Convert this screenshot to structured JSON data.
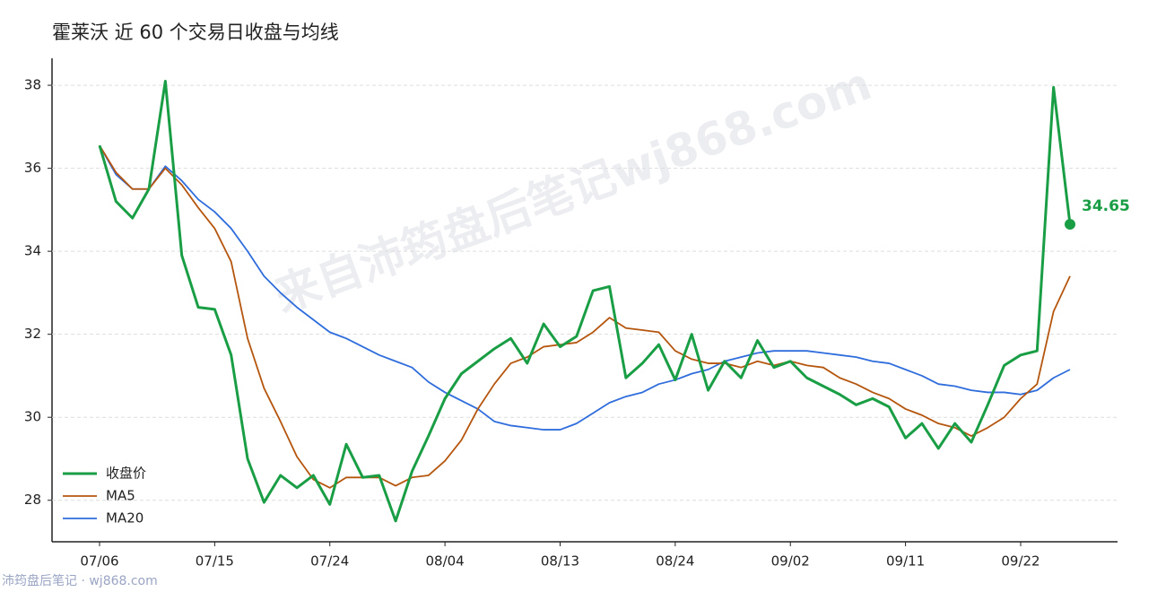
{
  "chart_data": {
    "type": "line",
    "title": "霍莱沃 近 60 个交易日收盘与均线",
    "watermark": "来自沛筠盘后笔记wj868.com",
    "source": "沛筠盘后笔记 · wj868.com",
    "categories": [
      "07/06",
      null,
      null,
      null,
      null,
      null,
      null,
      "07/15",
      null,
      null,
      null,
      null,
      null,
      null,
      "07/24",
      null,
      null,
      null,
      null,
      null,
      null,
      "08/04",
      null,
      null,
      null,
      null,
      null,
      null,
      "08/13",
      null,
      null,
      null,
      null,
      null,
      null,
      "08/24",
      null,
      null,
      null,
      null,
      null,
      null,
      "09/02",
      null,
      null,
      null,
      null,
      null,
      null,
      "09/11",
      null,
      null,
      null,
      null,
      null,
      null,
      "09/22",
      null,
      null,
      null
    ],
    "series": [
      {
        "name": "收盘价",
        "color": "#1a9e45",
        "values": [
          36.55,
          35.2,
          34.8,
          35.5,
          38.1,
          33.9,
          32.65,
          32.6,
          31.5,
          29.0,
          27.95,
          28.6,
          28.3,
          28.6,
          27.9,
          29.35,
          28.55,
          28.6,
          27.5,
          28.7,
          29.55,
          30.45,
          31.05,
          31.35,
          31.65,
          31.9,
          31.3,
          32.25,
          31.7,
          31.95,
          33.05,
          33.15,
          30.95,
          31.3,
          31.75,
          30.9,
          32.0,
          30.65,
          31.35,
          30.95,
          31.85,
          31.2,
          31.35,
          30.95,
          30.75,
          30.55,
          30.3,
          30.45,
          30.25,
          29.5,
          29.85,
          29.25,
          29.85,
          29.4,
          30.3,
          31.25,
          31.5,
          31.6,
          37.95,
          34.65
        ]
      },
      {
        "name": "MA5",
        "color": "#b5560f",
        "values": [
          36.55,
          35.9,
          35.5,
          35.5,
          36.0,
          35.6,
          35.05,
          34.55,
          33.75,
          31.9,
          30.7,
          29.9,
          29.05,
          28.5,
          28.3,
          28.55,
          28.55,
          28.55,
          28.35,
          28.55,
          28.6,
          28.95,
          29.45,
          30.2,
          30.8,
          31.3,
          31.45,
          31.7,
          31.75,
          31.8,
          32.05,
          32.4,
          32.15,
          32.1,
          32.05,
          31.6,
          31.4,
          31.3,
          31.3,
          31.2,
          31.35,
          31.25,
          31.35,
          31.25,
          31.2,
          30.95,
          30.8,
          30.6,
          30.45,
          30.2,
          30.05,
          29.85,
          29.75,
          29.55,
          29.75,
          30.0,
          30.45,
          30.8,
          32.55,
          33.4
        ]
      },
      {
        "name": "MA20",
        "color": "#2f6ddc",
        "values": [
          36.55,
          35.85,
          35.5,
          35.5,
          36.05,
          35.7,
          35.25,
          34.95,
          34.55,
          34.0,
          33.4,
          33.0,
          32.65,
          32.35,
          32.05,
          31.9,
          31.7,
          31.5,
          31.35,
          31.2,
          30.85,
          30.6,
          30.4,
          30.2,
          29.9,
          29.8,
          29.75,
          29.7,
          29.7,
          29.85,
          30.1,
          30.35,
          30.5,
          30.6,
          30.8,
          30.9,
          31.05,
          31.15,
          31.35,
          31.45,
          31.55,
          31.6,
          31.6,
          31.6,
          31.55,
          31.5,
          31.45,
          31.35,
          31.3,
          31.15,
          31.0,
          30.8,
          30.75,
          30.65,
          30.6,
          30.6,
          30.55,
          30.65,
          30.95,
          31.15
        ]
      }
    ],
    "ylim": [
      27.0,
      38.65
    ],
    "yticks": [
      28,
      30,
      32,
      34,
      36,
      38
    ],
    "grid": true,
    "legend": "lower-left"
  }
}
